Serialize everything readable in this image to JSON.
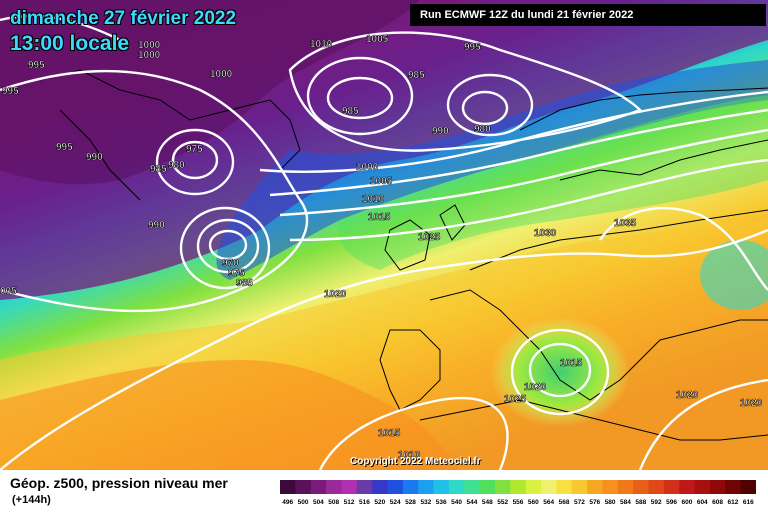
{
  "header": {
    "date": "dimanche 27 février 2022",
    "time": "13:00 locale",
    "run": "Run ECMWF 12Z du lundi 21 février 2022"
  },
  "footer": {
    "title": "Géop. z500, pression niveau mer",
    "lead": "(+144h)",
    "copyright": "Copyright 2022 Meteociel.fr"
  },
  "legend": {
    "values": [
      "496",
      "500",
      "504",
      "508",
      "512",
      "516",
      "520",
      "524",
      "528",
      "532",
      "536",
      "540",
      "544",
      "548",
      "552",
      "556",
      "560",
      "564",
      "568",
      "572",
      "576",
      "580",
      "584",
      "588",
      "592",
      "596",
      "600",
      "604",
      "608",
      "612",
      "616"
    ],
    "colors": [
      "#3a0a3a",
      "#5a105a",
      "#7a1a7a",
      "#9a2a9a",
      "#b030b0",
      "#6a3aa8",
      "#3838c8",
      "#2050e0",
      "#1a78f0",
      "#1aa0f0",
      "#20c0e8",
      "#30d8c8",
      "#40e090",
      "#50e060",
      "#80e040",
      "#b0e830",
      "#d8f040",
      "#f0f070",
      "#f8e040",
      "#f8c830",
      "#f8a820",
      "#f89020",
      "#f07818",
      "#e86018",
      "#e04818",
      "#d03018",
      "#c01818",
      "#a81010",
      "#900808",
      "#700404",
      "#500000"
    ]
  },
  "isobars": [
    {
      "text": "995"
    },
    {
      "text": "1000"
    },
    {
      "text": "995"
    },
    {
      "text": "990"
    },
    {
      "text": "985"
    },
    {
      "text": "975"
    },
    {
      "text": "980"
    },
    {
      "text": "1010"
    },
    {
      "text": "1005"
    },
    {
      "text": "1000"
    },
    {
      "text": "1000"
    },
    {
      "text": "985"
    },
    {
      "text": "985"
    },
    {
      "text": "995"
    },
    {
      "text": "990"
    },
    {
      "text": "980"
    },
    {
      "text": "995"
    },
    {
      "text": "990"
    },
    {
      "text": "970"
    },
    {
      "text": "975"
    },
    {
      "text": "985"
    },
    {
      "text": "1000"
    },
    {
      "text": "1005"
    },
    {
      "text": "1010"
    },
    {
      "text": "1015"
    },
    {
      "text": "1025"
    },
    {
      "text": "1030"
    },
    {
      "text": "1035"
    },
    {
      "text": "1020"
    },
    {
      "text": "005"
    },
    {
      "text": "1015"
    },
    {
      "text": "1020"
    },
    {
      "text": "1025"
    },
    {
      "text": "1020"
    },
    {
      "text": "1020"
    },
    {
      "text": "1015"
    },
    {
      "text": "1010"
    }
  ]
}
